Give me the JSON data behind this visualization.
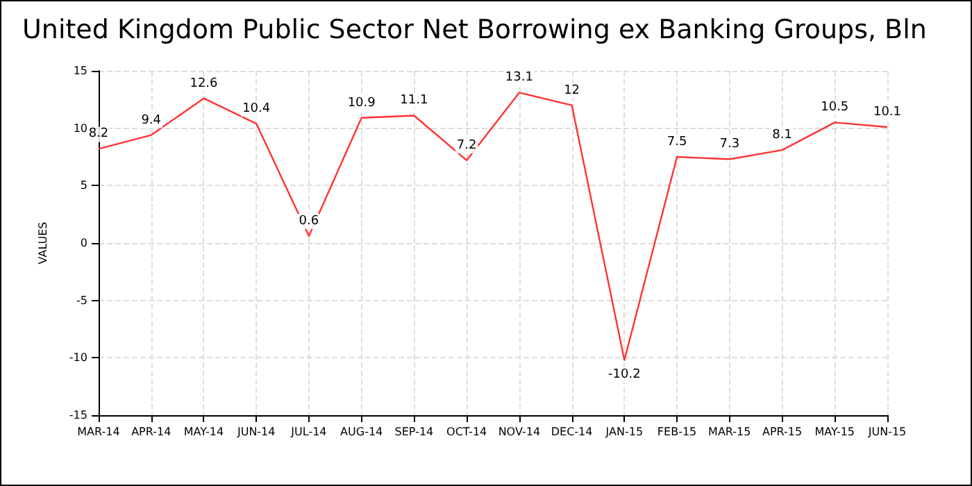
{
  "chart_data": {
    "type": "line",
    "title": "United Kingdom Public Sector Net Borrowing ex Banking Groups, Bln",
    "ylabel": "VALUES",
    "categories": [
      "MAR-14",
      "APR-14",
      "MAY-14",
      "JUN-14",
      "JUL-14",
      "AUG-14",
      "SEP-14",
      "OCT-14",
      "NOV-14",
      "DEC-14",
      "JAN-15",
      "FEB-15",
      "MAR-15",
      "APR-15",
      "MAY-15",
      "JUN-15"
    ],
    "series": [
      {
        "color": "#ff3333",
        "values": [
          8.2,
          9.4,
          12.6,
          10.4,
          0.6,
          10.9,
          11.1,
          7.2,
          13.1,
          12,
          -10.2,
          7.5,
          7.3,
          8.1,
          10.5,
          10.1
        ]
      }
    ],
    "ylim": [
      -15,
      15
    ],
    "yticks": [
      -15,
      -10,
      -5,
      0,
      5,
      10,
      15
    ],
    "grid": true,
    "data_labels": true,
    "marker": "none",
    "line_style": "solid"
  }
}
